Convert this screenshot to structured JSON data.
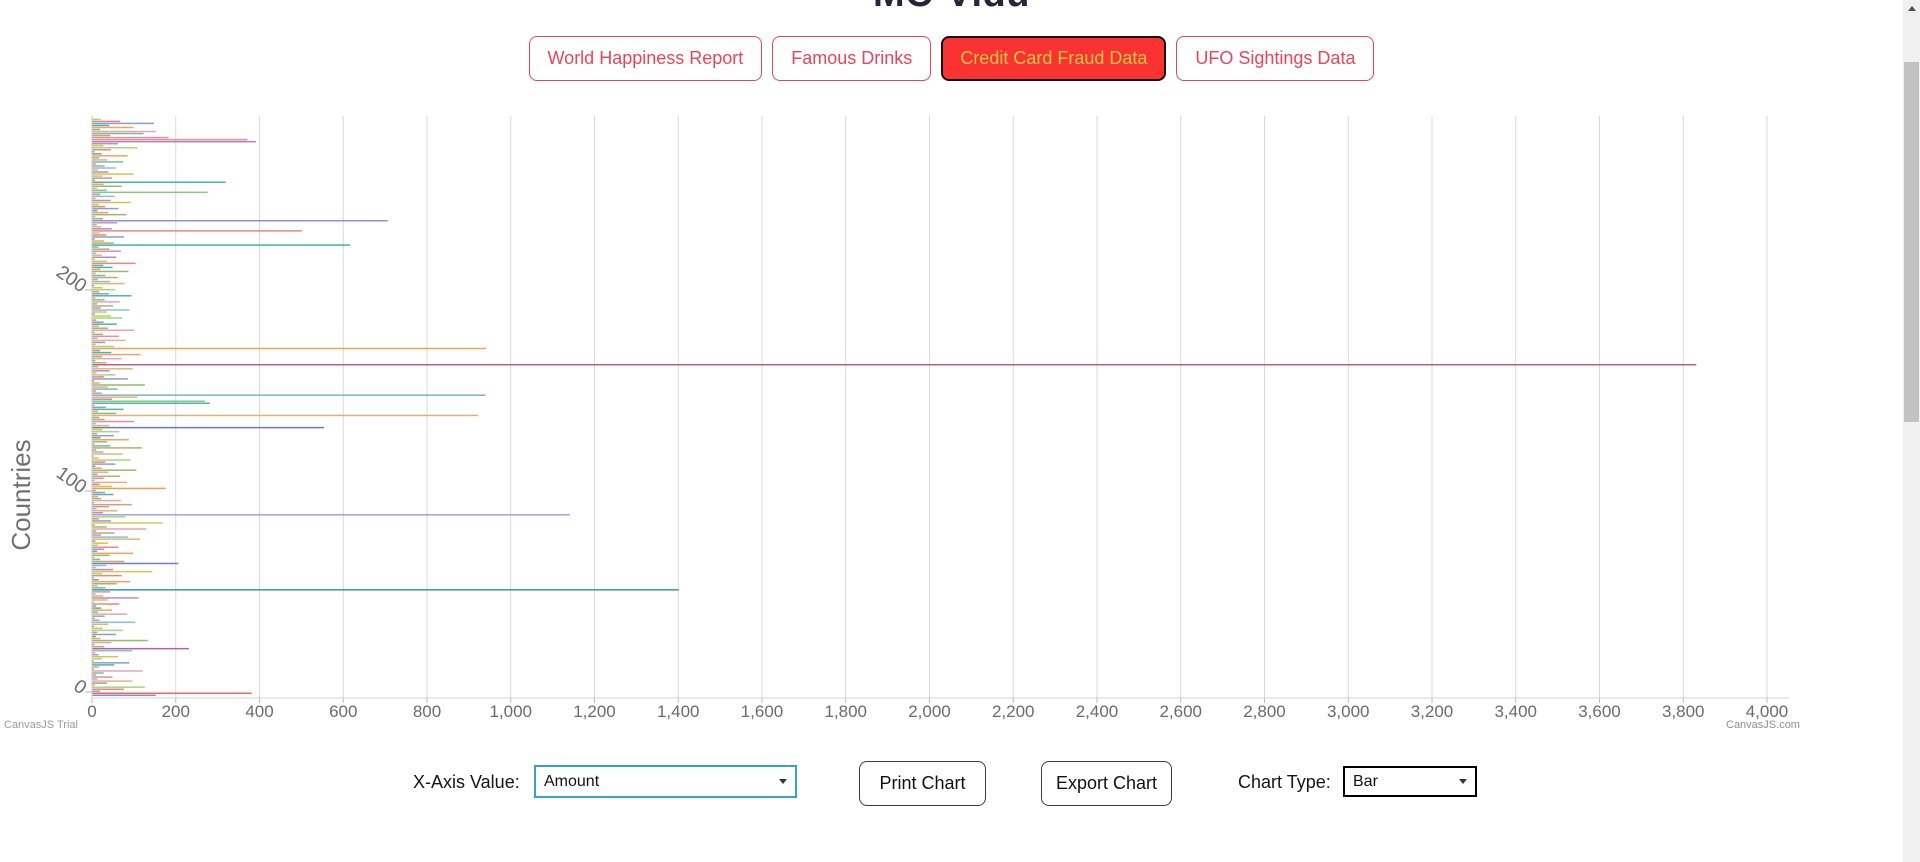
{
  "page": {
    "title_partial": "MC-Vidu"
  },
  "dataset_tabs": [
    {
      "label": "World Happiness Report",
      "active": false
    },
    {
      "label": "Famous Drinks",
      "active": false
    },
    {
      "label": "Credit Card Fraud Data",
      "active": true
    },
    {
      "label": "UFO Sightings Data",
      "active": false
    }
  ],
  "theme": {
    "tab_red": "#e8445b",
    "active_tab_bg": "#fb3232",
    "active_tab_text": "#d9c740",
    "grid_color": "#d9d9d9",
    "axis_line_color": "#c9c9c9",
    "tick_label_color": "#6b6b6b"
  },
  "controls": {
    "x_axis_label": "X-Axis Value:",
    "x_axis_selected": "Amount",
    "print_label": "Print Chart",
    "export_label": "Export Chart",
    "chart_type_label": "Chart Type:",
    "chart_type_selected": "Bar"
  },
  "branding": {
    "trial": "CanvasJS Trial",
    "site": "CanvasJS.com"
  },
  "chart_data": {
    "type": "bar",
    "orientation": "horizontal",
    "title": "",
    "xlabel": "",
    "ylabel": "Countries",
    "x_axis_field": "Amount",
    "xlim": [
      0,
      4000
    ],
    "x_tick_step": 200,
    "x_tick_labels": [
      "0",
      "200",
      "400",
      "600",
      "800",
      "1,000",
      "1,200",
      "1,400",
      "1,600",
      "1,800",
      "2,000",
      "2,200",
      "2,400",
      "2,600",
      "2,800",
      "3,000",
      "3,200",
      "3,400",
      "3,600",
      "3,800",
      "4,000"
    ],
    "y_tick_values": [
      0,
      100,
      200
    ],
    "y_tick_labels": [
      "0",
      "100",
      "200"
    ],
    "num_rows": 285,
    "grid": true,
    "legend": "none",
    "notable_points": [
      {
        "row": 163,
        "amount": 3830
      },
      {
        "row": 52,
        "amount": 1400
      },
      {
        "row": 89,
        "amount": 1140
      },
      {
        "row": 148,
        "amount": 939
      },
      {
        "row": 171,
        "amount": 940
      },
      {
        "row": 138,
        "amount": 921
      },
      {
        "row": 234,
        "amount": 705
      },
      {
        "row": 222,
        "amount": 615
      },
      {
        "row": 132,
        "amount": 553
      },
      {
        "row": 229,
        "amount": 500
      },
      {
        "row": 1,
        "amount": 380
      },
      {
        "row": 253,
        "amount": 318
      }
    ],
    "values": [
      151,
      380,
      18,
      75,
      125,
      6,
      35,
      95,
      12,
      48,
      9,
      27,
      120,
      4,
      16,
      52,
      88,
      3,
      22,
      61,
      14,
      7,
      95,
      230,
      28,
      5,
      45,
      132,
      19,
      8,
      56,
      11,
      73,
      24,
      4,
      38,
      102,
      17,
      6,
      29,
      83,
      13,
      47,
      21,
      9,
      64,
      5,
      36,
      110,
      26,
      7,
      42,
      1400,
      31,
      12,
      58,
      90,
      15,
      3,
      70,
      23,
      143,
      49,
      8,
      33,
      205,
      76,
      18,
      5,
      41,
      97,
      11,
      28,
      62,
      14,
      37,
      7,
      113,
      85,
      20,
      53,
      9,
      128,
      34,
      6,
      167,
      44,
      16,
      78,
      1140,
      25,
      59,
      10,
      39,
      94,
      4,
      68,
      21,
      13,
      50,
      30,
      8,
      175,
      46,
      17,
      82,
      5,
      27,
      66,
      12,
      38,
      105,
      22,
      7,
      55,
      31,
      91,
      15,
      3,
      72,
      26,
      9,
      118,
      43,
      6,
      35,
      87,
      19,
      51,
      11,
      64,
      24,
      553,
      40,
      8,
      99,
      29,
      16,
      921,
      57,
      13,
      74,
      32,
      5,
      280,
      268,
      47,
      107,
      939,
      22,
      9,
      60,
      36,
      125,
      17,
      4,
      85,
      28,
      54,
      10,
      41,
      96,
      14,
      3830,
      33,
      7,
      69,
      23,
      115,
      45,
      18,
      940,
      52,
      8,
      30,
      79,
      12,
      63,
      25,
      5,
      100,
      37,
      15,
      58,
      27,
      9,
      71,
      44,
      6,
      34,
      88,
      20,
      49,
      11,
      65,
      29,
      7,
      93,
      39,
      16,
      55,
      24,
      4,
      77,
      42,
      13,
      60,
      31,
      8,
      86,
      19,
      48,
      26,
      103,
      35,
      6,
      57,
      22,
      9,
      68,
      40,
      14,
      615,
      51,
      28,
      5,
      75,
      33,
      17,
      500,
      46,
      21,
      10,
      59,
      705,
      25,
      7,
      81,
      37,
      12,
      62,
      30,
      15,
      92,
      43,
      8,
      53,
      19,
      275,
      34,
      11,
      70,
      27,
      318,
      6,
      47,
      24,
      98,
      38,
      13,
      56,
      29,
      9,
      73,
      35,
      16,
      84,
      22,
      5,
      44,
      107,
      26,
      61,
      390,
      370,
      182,
      43,
      122,
      151,
      18,
      98,
      40,
      147,
      66,
      20
    ],
    "palette": [
      "#f5a25d",
      "#4fb3a9",
      "#8d9dd0",
      "#e8897e",
      "#a3d977",
      "#d9c24e",
      "#b98bc9",
      "#e5b377",
      "#7fc4d8",
      "#d98fae",
      "#c9a86a",
      "#6fc3a0",
      "#e6a4b4",
      "#9cb86e"
    ],
    "color_overrides": {
      "0": "#8290c9",
      "1": "#e96a5c",
      "23": "#b95fa8",
      "52": "#2f9e9e",
      "65": "#6f7fc3",
      "85": "#ddc94e",
      "89": "#a79fd4",
      "102": "#f09d52",
      "132": "#6b79c0",
      "138": "#ddb27e",
      "144": "#45b8a8",
      "145": "#86c780",
      "148": "#84aec6",
      "163": "#b3647f",
      "171": "#f0a259",
      "222": "#3fb3a4",
      "229": "#e88a80",
      "234": "#8b94cc",
      "248": "#8ac87e",
      "253": "#49b4ad",
      "273": "#a883c3",
      "274": "#ed9186"
    }
  }
}
